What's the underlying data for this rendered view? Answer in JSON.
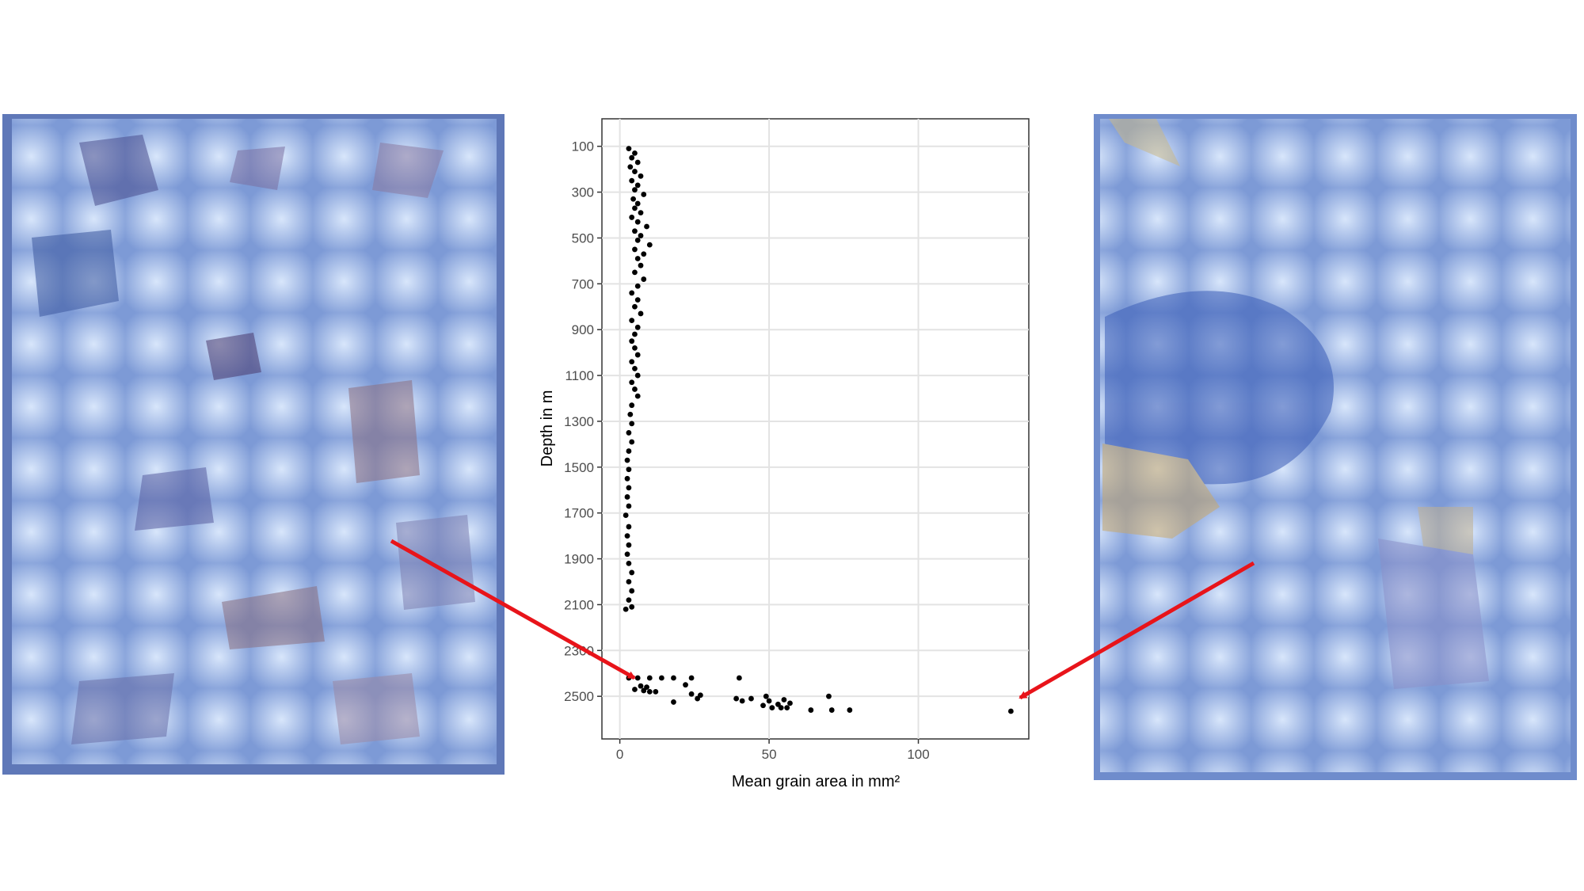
{
  "chart_data": {
    "type": "scatter",
    "x_label": "Mean grain area in mm²",
    "y_label": "Depth in m",
    "xlim": [
      -6,
      137
    ],
    "ylim": [
      -20,
      2686
    ],
    "y_inverted": true,
    "xticks": [
      0,
      50,
      100
    ],
    "yticks": [
      100,
      300,
      500,
      700,
      900,
      1100,
      1300,
      1500,
      1700,
      1900,
      2100,
      2300,
      2500
    ],
    "grid": true,
    "color": "#000000",
    "x": [
      3,
      5,
      4,
      6,
      3.5,
      5,
      7,
      4,
      6,
      5,
      8,
      4.5,
      6,
      5,
      7,
      4,
      6,
      9,
      5,
      7,
      6,
      10,
      5,
      8,
      6,
      7,
      5,
      8,
      6,
      4,
      6,
      5,
      7,
      4,
      6,
      5,
      4,
      5,
      6,
      4,
      5,
      6,
      4,
      5,
      6,
      4,
      3.5,
      4,
      3,
      4,
      3,
      2.5,
      3,
      2.5,
      3,
      2.5,
      3,
      2,
      3,
      2.5,
      3,
      2.5,
      3,
      4,
      3,
      4,
      3,
      4,
      2,
      3,
      6,
      10,
      14,
      18,
      24,
      40,
      22,
      7,
      9,
      5,
      8,
      12,
      10,
      24,
      27,
      49,
      70,
      44,
      39,
      26,
      55,
      41,
      50,
      18,
      57,
      53,
      48,
      51,
      56,
      64,
      77,
      71,
      54,
      131
    ],
    "y": [
      110,
      130,
      150,
      170,
      190,
      210,
      230,
      250,
      270,
      290,
      310,
      330,
      350,
      370,
      390,
      410,
      430,
      450,
      470,
      490,
      510,
      530,
      550,
      570,
      590,
      620,
      650,
      680,
      710,
      740,
      770,
      800,
      830,
      860,
      890,
      920,
      950,
      980,
      1010,
      1040,
      1070,
      1100,
      1130,
      1160,
      1190,
      1230,
      1270,
      1310,
      1350,
      1390,
      1430,
      1470,
      1510,
      1550,
      1590,
      1630,
      1670,
      1710,
      1760,
      1800,
      1840,
      1880,
      1920,
      1960,
      2000,
      2040,
      2080,
      2110,
      2120,
      2420,
      2420,
      2420,
      2420,
      2420,
      2420,
      2420,
      2450,
      2455,
      2460,
      2470,
      2475,
      2480,
      2480,
      2490,
      2495,
      2500,
      2500,
      2510,
      2510,
      2510,
      2515,
      2520,
      2520,
      2525,
      2530,
      2535,
      2540,
      2550,
      2550,
      2560,
      2560,
      2560,
      2550,
      2565
    ]
  }
}
